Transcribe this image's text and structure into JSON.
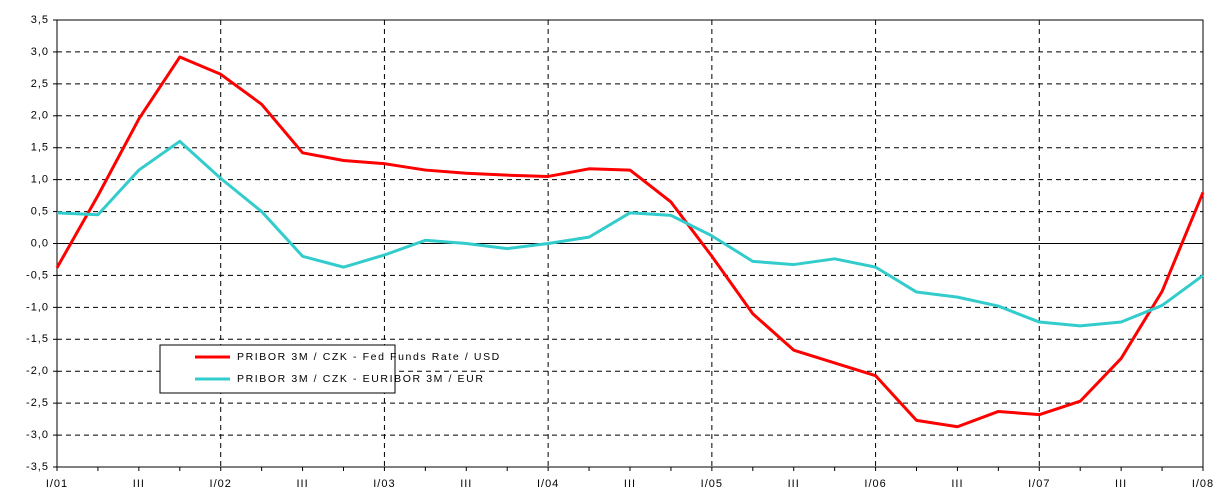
{
  "chart_data": {
    "type": "line",
    "categories": [
      "I/01",
      null,
      "III",
      null,
      "I/02",
      null,
      "III",
      null,
      "I/03",
      null,
      "III",
      null,
      "I/04",
      null,
      "III",
      null,
      "I/05",
      null,
      "III",
      null,
      "I/06",
      null,
      "III",
      null,
      "I/07",
      null,
      "III",
      null,
      "I/08"
    ],
    "series": [
      {
        "name": "PRIBOR 3M / CZK - Fed Funds Rate / USD",
        "color": "#ff0000",
        "values": [
          -0.38,
          0.75,
          1.95,
          2.92,
          2.65,
          2.18,
          1.42,
          1.3,
          1.25,
          1.15,
          1.1,
          1.07,
          1.05,
          1.17,
          1.15,
          0.65,
          -0.2,
          -1.1,
          -1.67,
          -1.87,
          -2.07,
          -2.77,
          -2.87,
          -2.63,
          -2.68,
          -2.47,
          -1.8,
          -0.75,
          0.8
        ]
      },
      {
        "name": "PRIBOR 3M / CZK - EURIBOR 3M / EUR",
        "color": "#33cccc",
        "values": [
          0.48,
          0.45,
          1.15,
          1.6,
          1.02,
          0.5,
          -0.2,
          -0.37,
          -0.18,
          0.05,
          0.0,
          -0.08,
          0.0,
          0.1,
          0.48,
          0.44,
          0.12,
          -0.28,
          -0.33,
          -0.24,
          -0.37,
          -0.76,
          -0.84,
          -0.98,
          -1.23,
          -1.29,
          -1.23,
          -0.97,
          -0.5
        ]
      }
    ],
    "ylim": [
      -3.5,
      3.5
    ],
    "yticks": [
      {
        "value": -3.5,
        "label": "-3,5"
      },
      {
        "value": -3,
        "label": "-3,0"
      },
      {
        "value": -2.5,
        "label": "-2,5"
      },
      {
        "value": -2,
        "label": "-2,0"
      },
      {
        "value": -1.5,
        "label": "-1,5"
      },
      {
        "value": -1,
        "label": "-1,0"
      },
      {
        "value": -0.5,
        "label": "-0,5"
      },
      {
        "value": 0,
        "label": "0,0"
      },
      {
        "value": 0.5,
        "label": "0,5"
      },
      {
        "value": 1,
        "label": "1,0"
      },
      {
        "value": 1.5,
        "label": "1,5"
      },
      {
        "value": 2,
        "label": "2,0"
      },
      {
        "value": 2.5,
        "label": "2,5"
      },
      {
        "value": 3,
        "label": "3,0"
      },
      {
        "value": 3.5,
        "label": "3,5"
      }
    ],
    "grid": true
  }
}
